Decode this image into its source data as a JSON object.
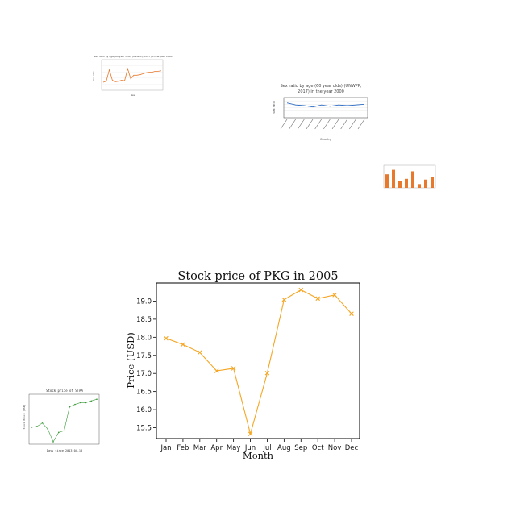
{
  "chart_data": [
    {
      "type": "line",
      "title": "Sex ratio by age (60 year olds) (UNWPP), 2017) in the year 2000",
      "xlabel": "Year",
      "ylabel": "Sex ratio",
      "colors": {
        "line": "#e8782c"
      },
      "grid": true,
      "x": [
        1,
        2,
        3,
        4,
        5,
        6,
        7,
        8,
        9,
        10,
        11,
        12,
        13,
        14,
        15,
        16,
        17,
        18,
        19,
        20
      ],
      "series": [
        {
          "values": [
            0.93,
            0.95,
            1.18,
            0.97,
            0.94,
            0.95,
            0.97,
            0.96,
            1.2,
            1.0,
            1.07,
            1.07,
            1.08,
            1.1,
            1.12,
            1.13,
            1.13,
            1.15,
            1.15,
            1.16
          ]
        }
      ],
      "ylim": [
        0.8,
        1.35
      ]
    },
    {
      "type": "line",
      "title": "Sex ratio by age (60 year olds) (UNWPP, 2017) in the year 2000",
      "xlabel": "Country",
      "ylabel": "Sex ratio",
      "colors": {
        "line": "#2c6cc4"
      },
      "grid": true,
      "categories": [
        "",
        "",
        "",
        "",
        "",
        "",
        "",
        "",
        "",
        ""
      ],
      "series": [
        {
          "values": [
            92,
            89,
            88,
            86,
            89,
            87,
            89,
            88,
            89,
            90
          ]
        }
      ],
      "ylim": [
        70,
        100
      ]
    },
    {
      "type": "bar",
      "title": "",
      "xlabel": "",
      "ylabel": "",
      "colors": {
        "bar": "#e8782c"
      },
      "grid": false,
      "categories": [
        "",
        "",
        "",
        "",
        "",
        "",
        "",
        ""
      ],
      "values": [
        18,
        24,
        9,
        12,
        22,
        5,
        11,
        15
      ],
      "ylim": [
        0,
        30
      ]
    },
    {
      "type": "line",
      "title": "Stock price of STAA",
      "xlabel": "Days since 2013-04-13",
      "ylabel": "Stock Price (USD)",
      "colors": {
        "line": "#3a9a3a"
      },
      "grid": false,
      "x": [
        0,
        1,
        2,
        3,
        4,
        5,
        6,
        7,
        8,
        9,
        10,
        11,
        12
      ],
      "series": [
        {
          "values": [
            5.8,
            5.9,
            6.3,
            5.6,
            4.1,
            5.2,
            5.4,
            8.2,
            8.5,
            8.7,
            8.7,
            8.9,
            9.1
          ]
        }
      ],
      "ylim": [
        4.0,
        9.5
      ]
    },
    {
      "type": "line",
      "title": "Stock price of PKG in 2005",
      "xlabel": "Month",
      "ylabel": "Price (USD)",
      "colors": {
        "line": "#f5a623"
      },
      "grid": false,
      "marker": "x",
      "categories": [
        "Jan",
        "Feb",
        "Mar",
        "Apr",
        "May",
        "Jun",
        "Jul",
        "Aug",
        "Sep",
        "Oct",
        "Nov",
        "Dec"
      ],
      "series": [
        {
          "values": [
            17.97,
            17.8,
            17.58,
            17.07,
            17.14,
            15.33,
            17.01,
            19.04,
            19.31,
            19.07,
            19.17,
            18.65
          ]
        }
      ],
      "yticks": [
        "15.5",
        "16.0",
        "16.5",
        "17.0",
        "17.5",
        "18.0",
        "18.5",
        "19.0"
      ],
      "ylim": [
        15.2,
        19.5
      ]
    }
  ]
}
